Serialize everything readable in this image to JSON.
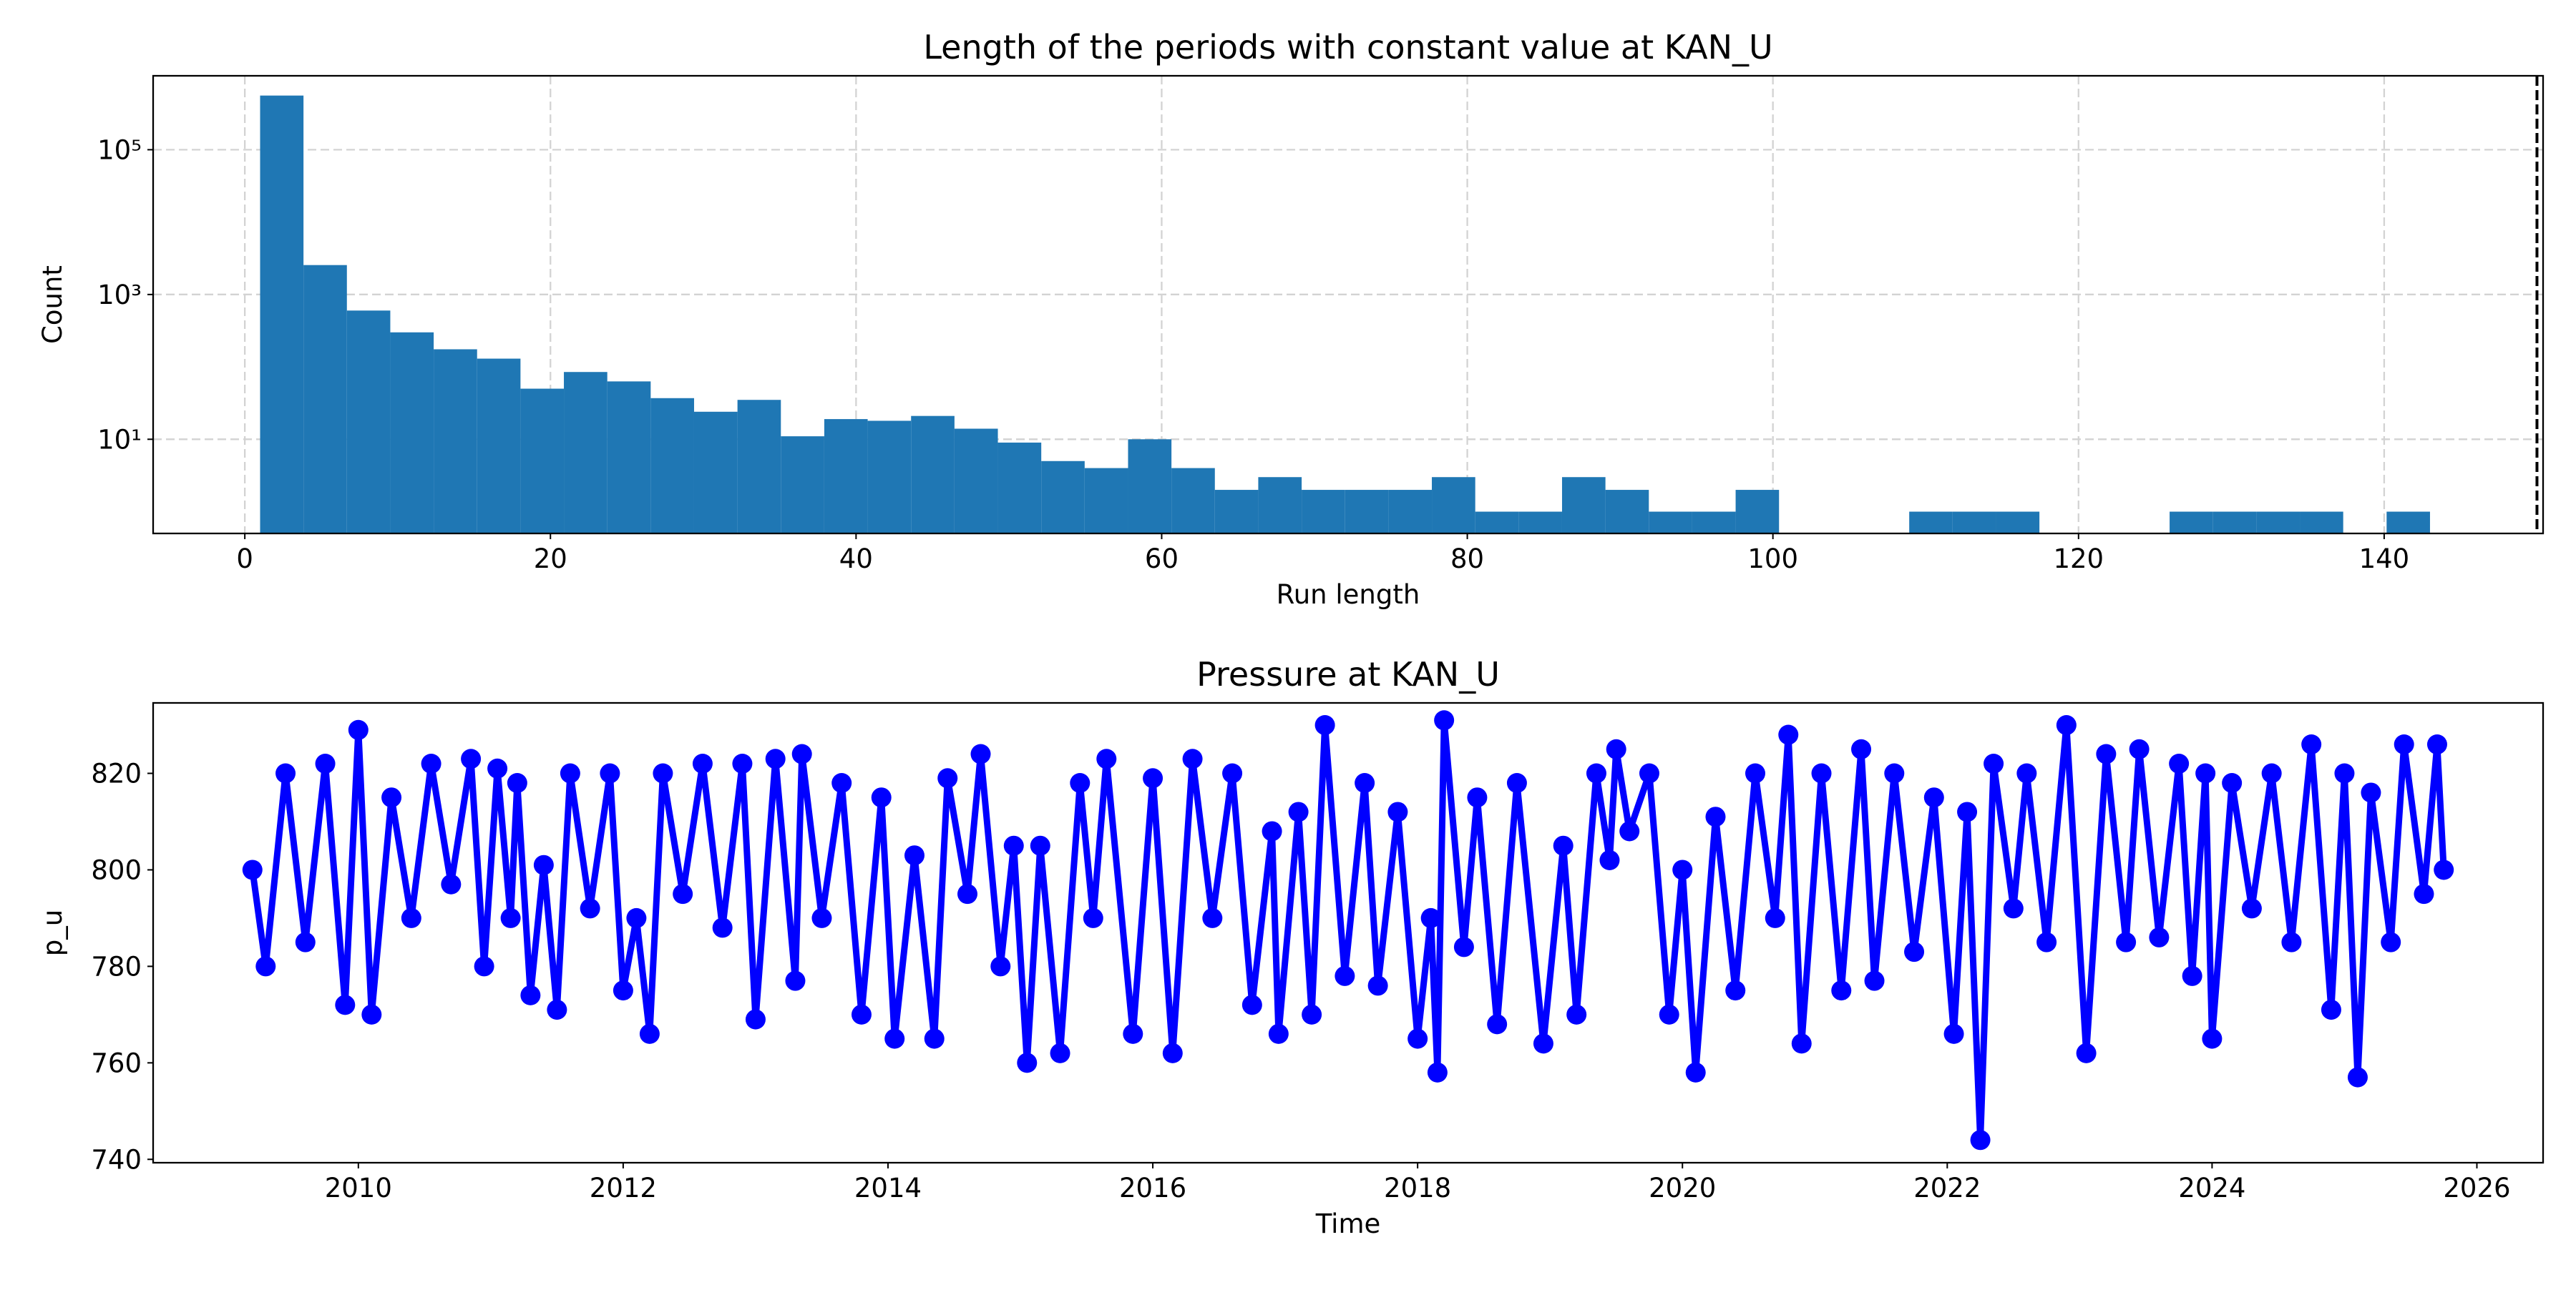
{
  "chart_data": [
    {
      "type": "histogram",
      "title": "Length of the periods with constant value at KAN_U",
      "xlabel": "Run length",
      "ylabel": "Count",
      "bins": [
        1,
        3.84,
        6.68,
        9.52,
        12.36,
        15.2,
        18.04,
        20.88,
        23.72,
        26.56,
        29.4,
        32.24,
        35.08,
        37.92,
        40.76,
        43.6,
        46.44,
        49.28,
        52.12,
        54.96,
        57.8,
        60.64,
        63.48,
        66.32,
        69.16,
        72,
        74.84,
        77.68,
        80.52,
        83.36,
        86.2,
        89.04,
        91.88,
        94.72,
        97.56,
        100.4,
        103.24,
        106.08,
        108.92,
        111.76,
        114.6,
        117.44,
        120.28,
        123.12,
        125.96,
        128.8,
        131.64,
        134.48,
        137.32,
        140.16,
        143
      ],
      "values": [
        560000,
        2550,
        600,
        300,
        175,
        130,
        50,
        85,
        63,
        37,
        24,
        35,
        11,
        19,
        18,
        21,
        14,
        9,
        5,
        4,
        10,
        4,
        2,
        3,
        2,
        2,
        2,
        3,
        1,
        1,
        3,
        2,
        1,
        1,
        2,
        0,
        0,
        0,
        1,
        1,
        1,
        0,
        0,
        0,
        1,
        1,
        1,
        1,
        0,
        1
      ],
      "color": "#1f77b4",
      "xlim": [
        -6,
        150.4
      ],
      "xticks": [
        0,
        20,
        40,
        60,
        80,
        100,
        120,
        140
      ],
      "ylim": [
        0.5,
        1050000
      ],
      "log_y": true,
      "yticks": [
        {
          "value": 10,
          "label": "10¹"
        },
        {
          "value": 1000,
          "label": "10³"
        },
        {
          "value": 100000,
          "label": "10⁵"
        }
      ],
      "grid": true,
      "vline": 150
    },
    {
      "type": "line",
      "title": "Pressure at KAN_U",
      "xlabel": "Time",
      "ylabel": "p_u",
      "color": "blue",
      "marker": true,
      "grid": false,
      "x": [
        2009.2,
        2009.3,
        2009.45,
        2009.6,
        2009.75,
        2009.9,
        2010.0,
        2010.1,
        2010.25,
        2010.4,
        2010.55,
        2010.7,
        2010.85,
        2010.95,
        2011.05,
        2011.15,
        2011.2,
        2011.3,
        2011.4,
        2011.5,
        2011.6,
        2011.75,
        2011.9,
        2012.0,
        2012.1,
        2012.2,
        2012.3,
        2012.45,
        2012.6,
        2012.75,
        2012.9,
        2013.0,
        2013.15,
        2013.3,
        2013.35,
        2013.5,
        2013.65,
        2013.8,
        2013.95,
        2014.05,
        2014.2,
        2014.35,
        2014.45,
        2014.6,
        2014.7,
        2014.85,
        2014.95,
        2015.05,
        2015.15,
        2015.3,
        2015.45,
        2015.55,
        2015.65,
        2015.85,
        2016.0,
        2016.15,
        2016.3,
        2016.45,
        2016.6,
        2016.75,
        2016.9,
        2016.95,
        2017.1,
        2017.2,
        2017.3,
        2017.45,
        2017.6,
        2017.7,
        2017.85,
        2018.0,
        2018.1,
        2018.15,
        2018.2,
        2018.35,
        2018.45,
        2018.6,
        2018.75,
        2018.95,
        2019.1,
        2019.2,
        2019.35,
        2019.45,
        2019.5,
        2019.6,
        2019.75,
        2019.9,
        2020.0,
        2020.1,
        2020.25,
        2020.4,
        2020.55,
        2020.7,
        2020.8,
        2020.9,
        2021.05,
        2021.2,
        2021.35,
        2021.45,
        2021.6,
        2021.75,
        2021.9,
        2022.05,
        2022.15,
        2022.25,
        2022.35,
        2022.5,
        2022.6,
        2022.75,
        2022.9,
        2023.05,
        2023.2,
        2023.35,
        2023.45,
        2023.6,
        2023.75,
        2023.85,
        2023.95,
        2024.0,
        2024.15,
        2024.3,
        2024.45,
        2024.6,
        2024.75,
        2024.9,
        2025.0,
        2025.1,
        2025.2,
        2025.35,
        2025.45,
        2025.6,
        2025.7,
        2025.75
      ],
      "values": [
        800,
        780,
        820,
        785,
        822,
        772,
        829,
        770,
        815,
        790,
        822,
        797,
        823,
        780,
        821,
        790,
        818,
        774,
        801,
        771,
        820,
        792,
        820,
        775,
        790,
        766,
        820,
        795,
        822,
        788,
        822,
        769,
        823,
        777,
        824,
        790,
        818,
        770,
        815,
        765,
        803,
        765,
        819,
        795,
        824,
        780,
        805,
        760,
        805,
        762,
        818,
        790,
        823,
        766,
        819,
        762,
        823,
        790,
        820,
        772,
        808,
        766,
        812,
        770,
        830,
        778,
        818,
        776,
        812,
        765,
        790,
        758,
        831,
        784,
        815,
        768,
        818,
        764,
        805,
        770,
        820,
        802,
        825,
        808,
        820,
        770,
        800,
        758,
        811,
        775,
        820,
        790,
        828,
        764,
        820,
        775,
        825,
        777,
        820,
        783,
        815,
        766,
        812,
        744,
        822,
        792,
        820,
        785,
        830,
        762,
        824,
        785,
        825,
        786,
        822,
        778,
        820,
        765,
        818,
        792,
        820,
        785,
        826,
        771,
        820,
        757,
        816,
        785,
        826,
        795,
        826,
        800
      ],
      "xlim": [
        2008.45,
        2026.5
      ],
      "xticks": [
        2010,
        2012,
        2014,
        2016,
        2018,
        2020,
        2022,
        2024,
        2026
      ],
      "ylim": [
        739.3,
        834.6
      ],
      "yticks": [
        740,
        760,
        780,
        800,
        820
      ]
    }
  ]
}
